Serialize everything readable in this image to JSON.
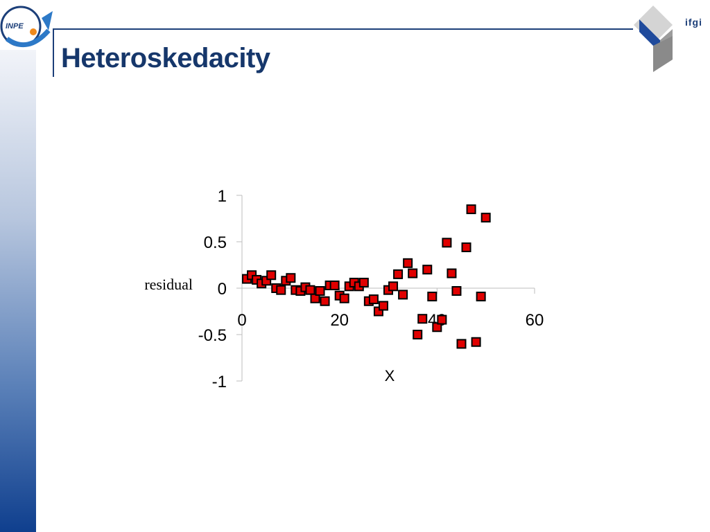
{
  "slide": {
    "title": "Heteroskedacity",
    "logo_left_text": "INPE",
    "logo_right_text": "ifgi"
  },
  "colors": {
    "title": "#16376b",
    "marker_fill": "#e00000",
    "marker_stroke": "#000000",
    "axis": "#bdbdbd"
  },
  "icons": {
    "left_logo": "inpe-logo-icon",
    "right_logo": "ifgi-logo-icon"
  },
  "chart_data": {
    "type": "scatter",
    "title": "",
    "xlabel": "X",
    "ylabel": "residual",
    "xlim": [
      0,
      60
    ],
    "ylim": [
      -1,
      1
    ],
    "xticks": [
      "0",
      "20",
      "40",
      "60"
    ],
    "yticks": [
      "1",
      "0.5",
      "0",
      "-0.5",
      "-1"
    ],
    "grid": false,
    "legend": "none",
    "series": [
      {
        "points": [
          [
            1,
            0.1
          ],
          [
            2,
            0.14
          ],
          [
            3,
            0.09
          ],
          [
            4,
            0.05
          ],
          [
            5,
            0.08
          ],
          [
            6,
            0.14
          ],
          [
            7,
            0.0
          ],
          [
            8,
            -0.02
          ],
          [
            9,
            0.08
          ],
          [
            10,
            0.11
          ],
          [
            11,
            -0.02
          ],
          [
            12,
            -0.03
          ],
          [
            13,
            0.01
          ],
          [
            14,
            -0.02
          ],
          [
            15,
            -0.11
          ],
          [
            16,
            -0.03
          ],
          [
            17,
            -0.14
          ],
          [
            18,
            0.03
          ],
          [
            19,
            0.03
          ],
          [
            20,
            -0.08
          ],
          [
            21,
            -0.11
          ],
          [
            22,
            0.02
          ],
          [
            23,
            0.06
          ],
          [
            24,
            0.02
          ],
          [
            25,
            0.06
          ],
          [
            26,
            -0.14
          ],
          [
            27,
            -0.12
          ],
          [
            28,
            -0.25
          ],
          [
            29,
            -0.19
          ],
          [
            30,
            -0.02
          ],
          [
            31,
            0.02
          ],
          [
            32,
            0.15
          ],
          [
            33,
            -0.07
          ],
          [
            34,
            0.27
          ],
          [
            35,
            0.16
          ],
          [
            36,
            -0.5
          ],
          [
            37,
            -0.33
          ],
          [
            38,
            0.2
          ],
          [
            39,
            -0.09
          ],
          [
            40,
            -0.42
          ],
          [
            41,
            -0.34
          ],
          [
            42,
            0.49
          ],
          [
            43,
            0.16
          ],
          [
            44,
            -0.03
          ],
          [
            45,
            -0.6
          ],
          [
            46,
            0.44
          ],
          [
            47,
            0.85
          ],
          [
            48,
            -0.58
          ],
          [
            49,
            -0.09
          ],
          [
            50,
            0.76
          ]
        ]
      }
    ]
  }
}
